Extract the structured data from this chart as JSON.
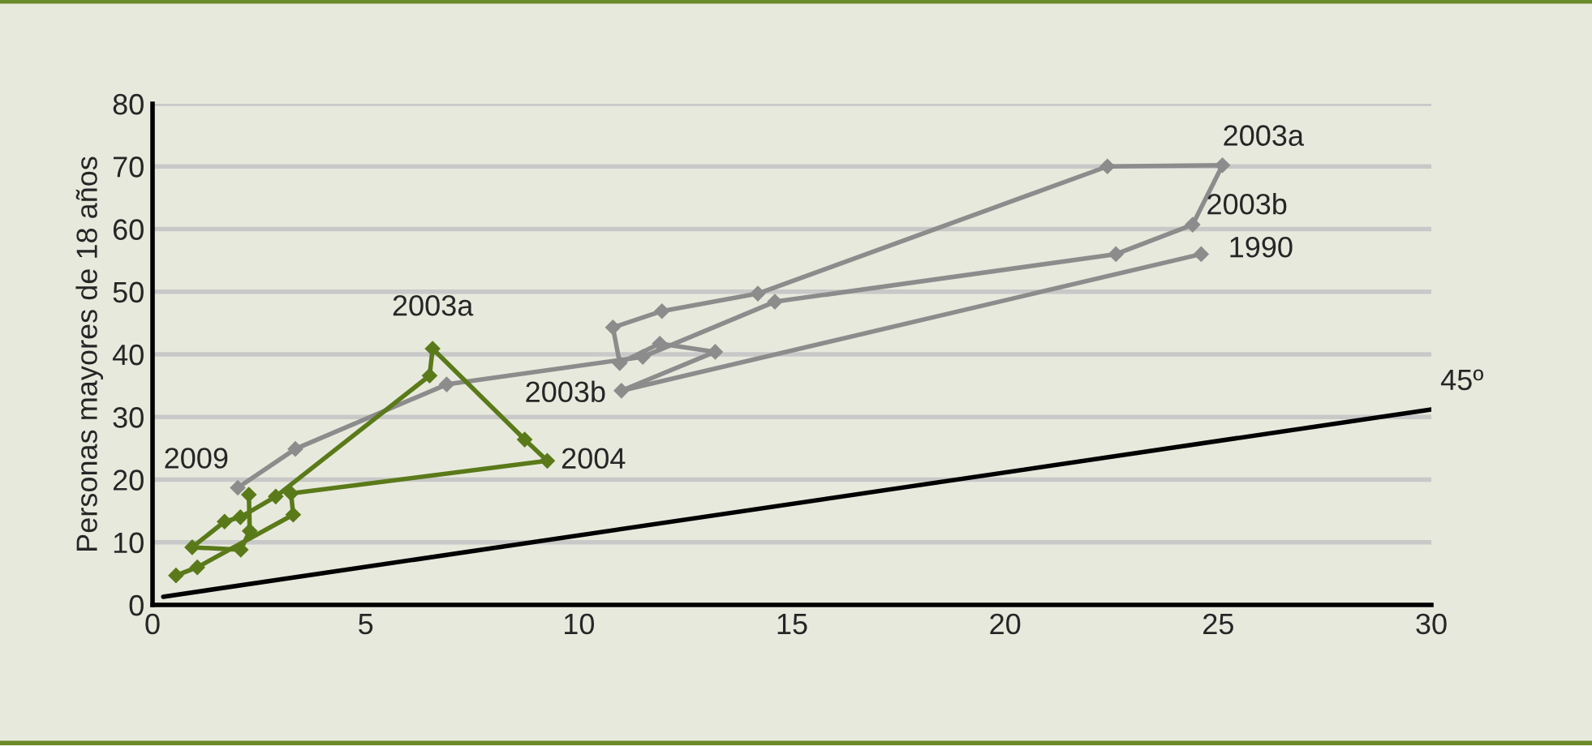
{
  "chart_data": {
    "type": "line",
    "ylabel": "Personas mayores de 18 años",
    "xlim": [
      0,
      30
    ],
    "ylim": [
      0,
      80
    ],
    "xticks": [
      0,
      5,
      10,
      15,
      20,
      25,
      30
    ],
    "yticks": [
      0,
      10,
      20,
      30,
      40,
      50,
      60,
      70,
      80
    ],
    "grid": "y",
    "marker": "diamond",
    "line_style": "solid",
    "legend": false,
    "series": [
      {
        "color": "#8c8c8c",
        "x": [
          24.6,
          11.0,
          13.2,
          11.9,
          10.96,
          10.8,
          11.95,
          14.2,
          22.4,
          25.1,
          24.4,
          22.6,
          14.6,
          11.5,
          6.9,
          3.35,
          2.0
        ],
        "values": [
          56,
          34.2,
          40.4,
          41.7,
          38.6,
          44.3,
          46.9,
          49.7,
          70.0,
          70.2,
          60.7,
          56.0,
          48.4,
          39.6,
          35.2,
          24.9,
          18.7
        ]
      },
      {
        "color": "#5a7a1a",
        "x": [
          0.55,
          1.05,
          3.3,
          3.25,
          9.26,
          8.73,
          6.57,
          6.5,
          2.89,
          2.06,
          1.69,
          0.93,
          2.07,
          2.28,
          2.26
        ],
        "values": [
          4.7,
          6.0,
          14.4,
          17.8,
          23.0,
          26.4,
          40.9,
          36.6,
          17.3,
          14.0,
          13.3,
          9.2,
          8.8,
          11.8,
          17.6
        ]
      },
      {
        "type": "line",
        "marker": "none",
        "color": "#000000",
        "x": [
          0.25,
          30
        ],
        "values": [
          1.3,
          31.2
        ]
      }
    ],
    "annotations": [
      {
        "text": "2003a",
        "x": 6.57,
        "y": 40.9
      },
      {
        "text": "2003b",
        "x": 8.73,
        "y": 26.4
      },
      {
        "text": "2004",
        "x": 9.26,
        "y": 23.0
      },
      {
        "text": "2003a",
        "x": 25.1,
        "y": 70.2
      },
      {
        "text": "2003b",
        "x": 24.4,
        "y": 60.7
      },
      {
        "text": "1990",
        "x": 24.6,
        "y": 56
      },
      {
        "text": "2009",
        "x": 2.0,
        "y": 18.7
      },
      {
        "text": "45º",
        "x": 30,
        "y": 31.2
      }
    ]
  }
}
